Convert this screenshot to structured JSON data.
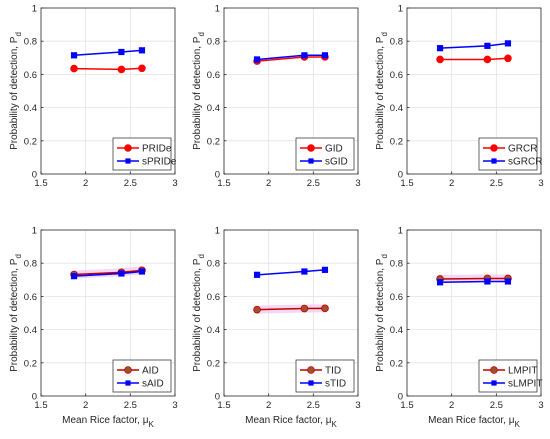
{
  "chart_data": [
    {
      "type": "line",
      "x": [
        1.87,
        2.4,
        2.63
      ],
      "xlim": [
        1.5,
        3
      ],
      "ylim": [
        0,
        1
      ],
      "xticks": [
        1.5,
        2,
        2.5,
        3
      ],
      "yticks": [
        0,
        0.2,
        0.4,
        0.6,
        0.8,
        1
      ],
      "xtick_labels": [
        "1.5",
        "2",
        "2.5",
        "3"
      ],
      "ytick_labels": [
        "0",
        "0.2",
        "0.4",
        "0.6",
        "0.8",
        "1"
      ],
      "xlabel": "",
      "xlabel_sub": "",
      "ylabel": "Probability of detection, P",
      "ylabel_sub": "d",
      "legend_position": "bottom-right",
      "series": [
        {
          "name": "PRIDe",
          "values": [
            0.635,
            0.63,
            0.637
          ],
          "color": "#ff0000",
          "marker": "circle"
        },
        {
          "name": "sPRIDe",
          "values": [
            0.715,
            0.735,
            0.745
          ],
          "color": "#0000ff",
          "marker": "square"
        }
      ]
    },
    {
      "type": "line",
      "x": [
        1.87,
        2.4,
        2.63
      ],
      "xlim": [
        1.5,
        3
      ],
      "ylim": [
        0,
        1
      ],
      "xticks": [
        1.5,
        2,
        2.5,
        3
      ],
      "yticks": [
        0,
        0.2,
        0.4,
        0.6,
        0.8,
        1
      ],
      "xtick_labels": [
        "1.5",
        "2",
        "2.5",
        "3"
      ],
      "ytick_labels": [
        "0",
        "0.2",
        "0.4",
        "0.6",
        "0.8",
        "1"
      ],
      "xlabel": "",
      "xlabel_sub": "",
      "ylabel": "Probability of detection, P",
      "ylabel_sub": "d",
      "legend_position": "bottom-right",
      "series": [
        {
          "name": "GID",
          "values": [
            0.68,
            0.705,
            0.705
          ],
          "color": "#ff0000",
          "marker": "circle"
        },
        {
          "name": "sGID",
          "values": [
            0.69,
            0.715,
            0.715
          ],
          "color": "#0000ff",
          "marker": "square"
        }
      ]
    },
    {
      "type": "line",
      "x": [
        1.87,
        2.4,
        2.63
      ],
      "xlim": [
        1.5,
        3
      ],
      "ylim": [
        0,
        1
      ],
      "xticks": [
        1.5,
        2,
        2.5,
        3
      ],
      "yticks": [
        0,
        0.2,
        0.4,
        0.6,
        0.8,
        1
      ],
      "xtick_labels": [
        "1.5",
        "2",
        "2.5",
        "3"
      ],
      "ytick_labels": [
        "0",
        "0.2",
        "0.4",
        "0.6",
        "0.8",
        "1"
      ],
      "xlabel": "",
      "xlabel_sub": "",
      "ylabel": "Probability of detection, P",
      "ylabel_sub": "d",
      "legend_position": "bottom-right",
      "series": [
        {
          "name": "GRCR",
          "values": [
            0.69,
            0.69,
            0.697
          ],
          "color": "#ff0000",
          "marker": "circle"
        },
        {
          "name": "sGRCR",
          "values": [
            0.758,
            0.772,
            0.787
          ],
          "color": "#0000ff",
          "marker": "square"
        }
      ]
    },
    {
      "type": "line",
      "x": [
        1.87,
        2.4,
        2.63
      ],
      "xlim": [
        1.5,
        3
      ],
      "ylim": [
        0,
        1
      ],
      "xticks": [
        1.5,
        2,
        2.5,
        3
      ],
      "yticks": [
        0,
        0.2,
        0.4,
        0.6,
        0.8,
        1
      ],
      "xtick_labels": [
        "1.5",
        "2",
        "2.5",
        "3"
      ],
      "ytick_labels": [
        "0",
        "0.2",
        "0.4",
        "0.6",
        "0.8",
        "1"
      ],
      "xlabel": "Mean Rice factor, μ",
      "xlabel_sub": "K",
      "ylabel": "Probability of detection, P",
      "ylabel_sub": "d",
      "legend_position": "bottom-right",
      "series": [
        {
          "name": "AID",
          "values": [
            0.732,
            0.745,
            0.757
          ],
          "color": "#a0522d",
          "marker": "circle",
          "line_color": "#c00000"
        },
        {
          "name": "sAID",
          "values": [
            0.722,
            0.738,
            0.75
          ],
          "color": "#0000ff",
          "marker": "square"
        }
      ]
    },
    {
      "type": "line",
      "x": [
        1.87,
        2.4,
        2.63
      ],
      "xlim": [
        1.5,
        3
      ],
      "ylim": [
        0,
        1
      ],
      "xticks": [
        1.5,
        2,
        2.5,
        3
      ],
      "yticks": [
        0,
        0.2,
        0.4,
        0.6,
        0.8,
        1
      ],
      "xtick_labels": [
        "1.5",
        "2",
        "2.5",
        "3"
      ],
      "ytick_labels": [
        "0",
        "0.2",
        "0.4",
        "0.6",
        "0.8",
        "1"
      ],
      "xlabel": "Mean Rice factor, μ",
      "xlabel_sub": "K",
      "ylabel": "Probability of detection, P",
      "ylabel_sub": "d",
      "legend_position": "bottom-right",
      "series": [
        {
          "name": "TID",
          "values": [
            0.52,
            0.527,
            0.528
          ],
          "color": "#a0522d",
          "marker": "circle",
          "line_color": "#c00000"
        },
        {
          "name": "sTID",
          "values": [
            0.73,
            0.75,
            0.76
          ],
          "color": "#0000ff",
          "marker": "square"
        }
      ]
    },
    {
      "type": "line",
      "x": [
        1.87,
        2.4,
        2.63
      ],
      "xlim": [
        1.5,
        3
      ],
      "ylim": [
        0,
        1
      ],
      "xticks": [
        1.5,
        2,
        2.5,
        3
      ],
      "yticks": [
        0,
        0.2,
        0.4,
        0.6,
        0.8,
        1
      ],
      "xtick_labels": [
        "1.5",
        "2",
        "2.5",
        "3"
      ],
      "ytick_labels": [
        "0",
        "0.2",
        "0.4",
        "0.6",
        "0.8",
        "1"
      ],
      "xlabel": "Mean Rice factor, μ",
      "xlabel_sub": "K",
      "ylabel": "Probability of detection, P",
      "ylabel_sub": "d",
      "legend_position": "bottom-right",
      "series": [
        {
          "name": "LMPIT",
          "values": [
            0.705,
            0.708,
            0.708
          ],
          "color": "#a0522d",
          "marker": "circle",
          "line_color": "#c00000"
        },
        {
          "name": "sLMPIT",
          "values": [
            0.685,
            0.69,
            0.69
          ],
          "color": "#0000ff",
          "marker": "square"
        }
      ]
    }
  ]
}
